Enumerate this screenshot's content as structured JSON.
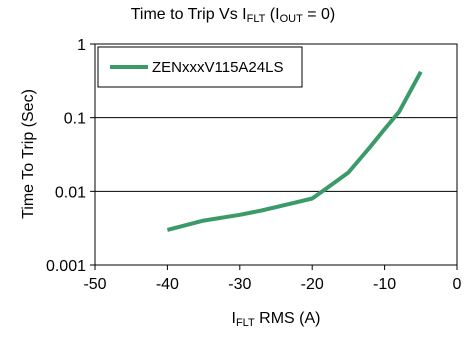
{
  "chart_data": {
    "type": "line",
    "title": {
      "main": "Time to Trip Vs I",
      "sub": "FLT",
      "paren_open": " (I",
      "paren_sub": "OUT",
      "paren_close": " = 0)"
    },
    "xlabel": {
      "main": "I",
      "sub": "FLT",
      "rest": " RMS (A)"
    },
    "ylabel": "Time To Trip (Sec)",
    "x_ticks": [
      "-50",
      "-40",
      "-30",
      "-20",
      "-10",
      "0"
    ],
    "y_ticks": [
      "1",
      "0.1",
      "0.01",
      "0.001"
    ],
    "xlim": [
      -50,
      0
    ],
    "ylim": [
      0.001,
      1
    ],
    "y_scale": "log",
    "grid": "horizontal",
    "legend_position": "top-left",
    "series": [
      {
        "name": "ZENxxxV115A24LS",
        "color": "#3a9a68",
        "x": [
          -40,
          -35,
          -30,
          -27,
          -23,
          -20,
          -18,
          -15,
          -12,
          -10,
          -8,
          -5
        ],
        "y": [
          0.003,
          0.004,
          0.0048,
          0.0055,
          0.0068,
          0.008,
          0.011,
          0.018,
          0.04,
          0.07,
          0.12,
          0.42
        ]
      }
    ]
  }
}
